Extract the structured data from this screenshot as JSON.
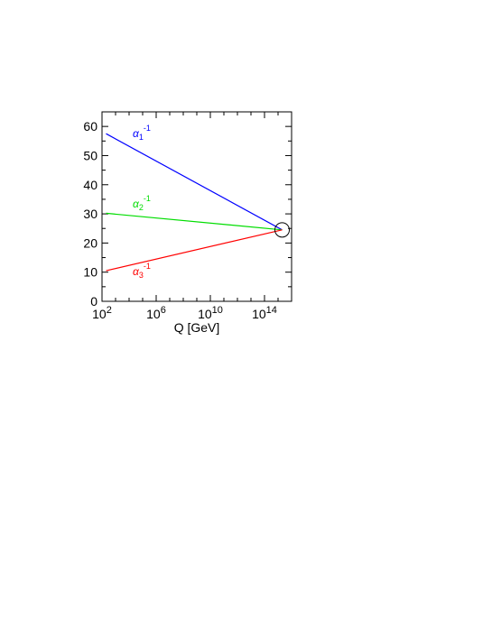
{
  "chart_data": {
    "type": "line",
    "title": "",
    "xlabel": "Q [GeV]",
    "ylabel": "",
    "x_scale": "log",
    "xlim": [
      100,
      10000000000000000
    ],
    "ylim": [
      0,
      65
    ],
    "xticks": [
      {
        "value": 100,
        "base": "10",
        "exp": "2"
      },
      {
        "value": 1000000,
        "base": "10",
        "exp": "6"
      },
      {
        "value": 10000000000,
        "base": "10",
        "exp": "10"
      },
      {
        "value": 100000000000000,
        "base": "10",
        "exp": "14"
      }
    ],
    "yticks": [
      "0",
      "10",
      "20",
      "30",
      "40",
      "50",
      "60"
    ],
    "series": [
      {
        "name": "α₁⁻¹",
        "greek": "α",
        "sub": "1",
        "sup": "-1",
        "color": "#0000ff",
        "x": [
          200,
          2000000000000000
        ],
        "y": [
          57.5,
          24.5
        ]
      },
      {
        "name": "α₂⁻¹",
        "greek": "α",
        "sub": "2",
        "sup": "-1",
        "color": "#00dd00",
        "x": [
          200,
          2000000000000000
        ],
        "y": [
          30.2,
          24.5
        ]
      },
      {
        "name": "α₃⁻¹",
        "greek": "α",
        "sub": "3",
        "sup": "-1",
        "color": "#ff0000",
        "x": [
          200,
          2000000000000000
        ],
        "y": [
          10.5,
          24.5
        ]
      }
    ],
    "annotations": [
      {
        "type": "circle",
        "x": 2000000000000000,
        "y": 24.5,
        "color": "#000000"
      }
    ],
    "grid": false,
    "legend": "inline labels"
  }
}
